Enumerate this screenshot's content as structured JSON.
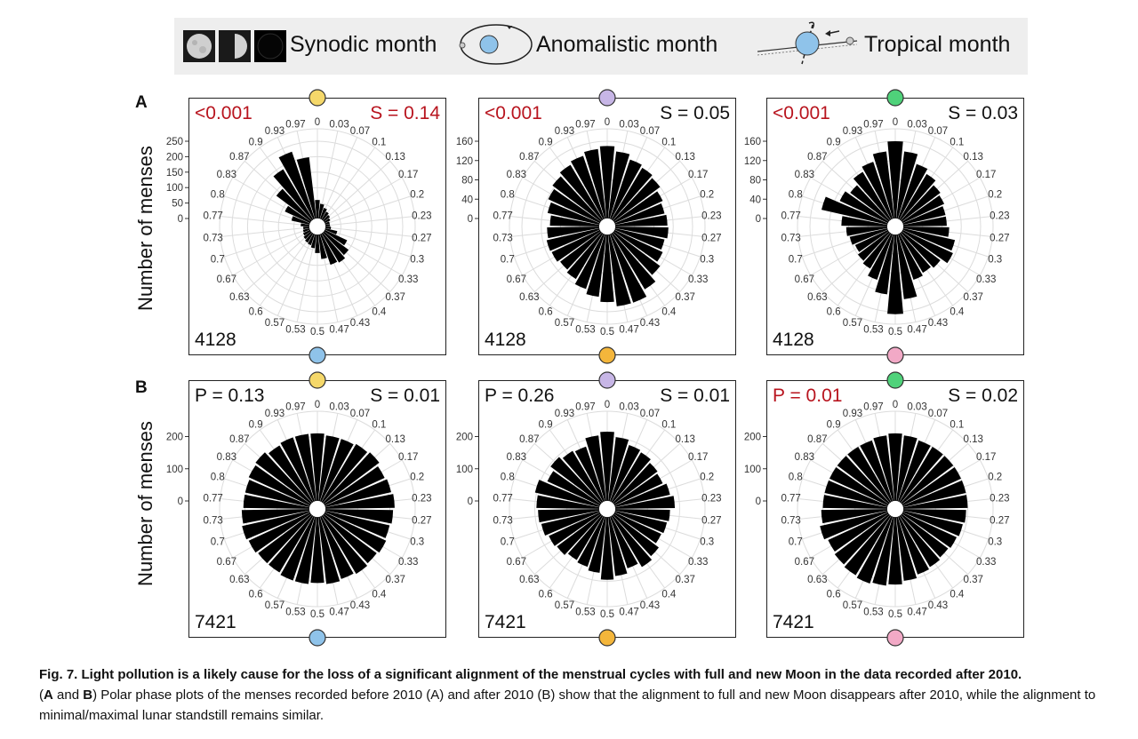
{
  "legend": {
    "synodic": "Synodic month",
    "anomalistic": "Anomalistic month",
    "tropical": "Tropical month"
  },
  "axis_label": "Number of menses",
  "colors": {
    "yellow": "#f5d86a",
    "blue": "#8fc3ea",
    "purple": "#c7b6e6",
    "orange": "#f4b63b",
    "green": "#4fd27a",
    "pink": "#f2a9c6",
    "red": "#b8141e",
    "grid": "#dcdcdc",
    "bar": "#000000"
  },
  "phase_labels": [
    "0",
    "0.03",
    "0.07",
    "0.1",
    "0.13",
    "0.17",
    "0.2",
    "0.23",
    "0.27",
    "0.3",
    "0.33",
    "0.37",
    "0.4",
    "0.43",
    "0.47",
    "0.5",
    "0.53",
    "0.57",
    "0.6",
    "0.63",
    "0.67",
    "0.7",
    "0.73",
    "0.77",
    "0.8",
    "0.83",
    "0.87",
    "0.9",
    "0.93",
    "0.97"
  ],
  "caption": {
    "title": "Fig. 7. Light pollution is a likely cause for the loss of a significant alignment of the menstrual cycles with full and new Moon in the data recorded after 2010.",
    "p1": "(",
    "A": "A",
    "and": " and ",
    "B": "B",
    "rest": ") Polar phase plots of the menses recorded before 2010 (A) and after 2010 (B) show that the alignment to full and new Moon disappears after 2010, while the alignment to minimal/maximal lunar standstill remains similar."
  },
  "chart_data": [
    {
      "panel": "A",
      "type": "polar-bar",
      "title": "Synodic month (before 2010)",
      "left_stat": "<0.001",
      "left_stat_red": true,
      "right_stat": "S = 0.14",
      "right_stat_red": true,
      "n": "4128",
      "ticks": [
        "250",
        "200",
        "150",
        "100",
        "50",
        "0"
      ],
      "tick_values": [
        250,
        200,
        150,
        100,
        50,
        0
      ],
      "r_max": 250,
      "top_marker": "yellow",
      "bottom_marker": "blue",
      "values": [
        60,
        48,
        38,
        30,
        25,
        20,
        15,
        15,
        18,
        40,
        80,
        100,
        110,
        105,
        80,
        60,
        45,
        38,
        35,
        30,
        25,
        22,
        20,
        28,
        60,
        90,
        140,
        190,
        230,
        200
      ]
    },
    {
      "panel": "A",
      "type": "polar-bar",
      "title": "Anomalistic month (before 2010)",
      "left_stat": "<0.001",
      "left_stat_red": true,
      "right_stat": "S = 0.05",
      "right_stat_red": false,
      "n": "4128",
      "ticks": [
        "160",
        "120",
        "80",
        "40",
        "0"
      ],
      "tick_values": [
        160,
        120,
        80,
        40,
        0
      ],
      "r_max": 160,
      "top_marker": "purple",
      "bottom_marker": "orange",
      "values": [
        150,
        140,
        130,
        125,
        120,
        110,
        105,
        108,
        110,
        105,
        110,
        120,
        135,
        150,
        150,
        140,
        130,
        120,
        110,
        105,
        110,
        112,
        108,
        102,
        110,
        118,
        125,
        132,
        138,
        145
      ]
    },
    {
      "panel": "A",
      "type": "polar-bar",
      "title": "Tropical month (before 2010)",
      "left_stat": "<0.001",
      "left_stat_red": true,
      "right_stat": "S = 0.03",
      "right_stat_red": false,
      "n": "4128",
      "ticks": [
        "160",
        "120",
        "80",
        "40",
        "0"
      ],
      "tick_values": [
        160,
        120,
        80,
        40,
        0
      ],
      "r_max": 160,
      "top_marker": "green",
      "bottom_marker": "pink",
      "values": [
        160,
        140,
        120,
        110,
        100,
        95,
        90,
        90,
        95,
        110,
        115,
        100,
        95,
        100,
        135,
        165,
        125,
        100,
        85,
        80,
        75,
        80,
        85,
        95,
        140,
        110,
        100,
        115,
        125,
        140
      ]
    },
    {
      "panel": "B",
      "type": "polar-bar",
      "title": "Synodic month (after 2010)",
      "left_stat": "P = 0.13",
      "left_stat_red": false,
      "right_stat": "S = 0.01",
      "right_stat_red": false,
      "n": "7421",
      "ticks": [
        "200",
        "100",
        "0"
      ],
      "tick_values": [
        200,
        100,
        0
      ],
      "r_max": 240,
      "top_marker": "yellow",
      "bottom_marker": "blue",
      "values": [
        210,
        205,
        205,
        210,
        215,
        205,
        210,
        215,
        210,
        205,
        210,
        205,
        210,
        205,
        210,
        205,
        210,
        210,
        205,
        205,
        210,
        215,
        210,
        205,
        205,
        210,
        215,
        205,
        210,
        210
      ]
    },
    {
      "panel": "B",
      "type": "polar-bar",
      "title": "Anomalistic month (after 2010)",
      "left_stat": "P = 0.26",
      "left_stat_red": false,
      "right_stat": "S = 0.01",
      "right_stat_red": false,
      "n": "7421",
      "ticks": [
        "200",
        "100",
        "0"
      ],
      "tick_values": [
        200,
        100,
        0
      ],
      "r_max": 240,
      "top_marker": "purple",
      "bottom_marker": "orange",
      "values": [
        215,
        200,
        185,
        180,
        170,
        165,
        175,
        185,
        170,
        165,
        160,
        175,
        185,
        170,
        185,
        195,
        175,
        165,
        160,
        170,
        175,
        185,
        190,
        195,
        205,
        180,
        195,
        185,
        180,
        205
      ]
    },
    {
      "panel": "B",
      "type": "polar-bar",
      "title": "Tropical month (after 2010)",
      "left_stat": "P = 0.01",
      "left_stat_red": true,
      "right_stat": "S = 0.02",
      "right_stat_red": false,
      "n": "7421",
      "ticks": [
        "200",
        "100",
        "0"
      ],
      "tick_values": [
        200,
        100,
        0
      ],
      "r_max": 240,
      "top_marker": "green",
      "bottom_marker": "pink",
      "values": [
        210,
        205,
        200,
        200,
        200,
        200,
        200,
        200,
        195,
        190,
        185,
        180,
        185,
        190,
        200,
        210,
        215,
        220,
        215,
        210,
        205,
        215,
        205,
        200,
        200,
        200,
        200,
        200,
        200,
        205
      ]
    }
  ]
}
